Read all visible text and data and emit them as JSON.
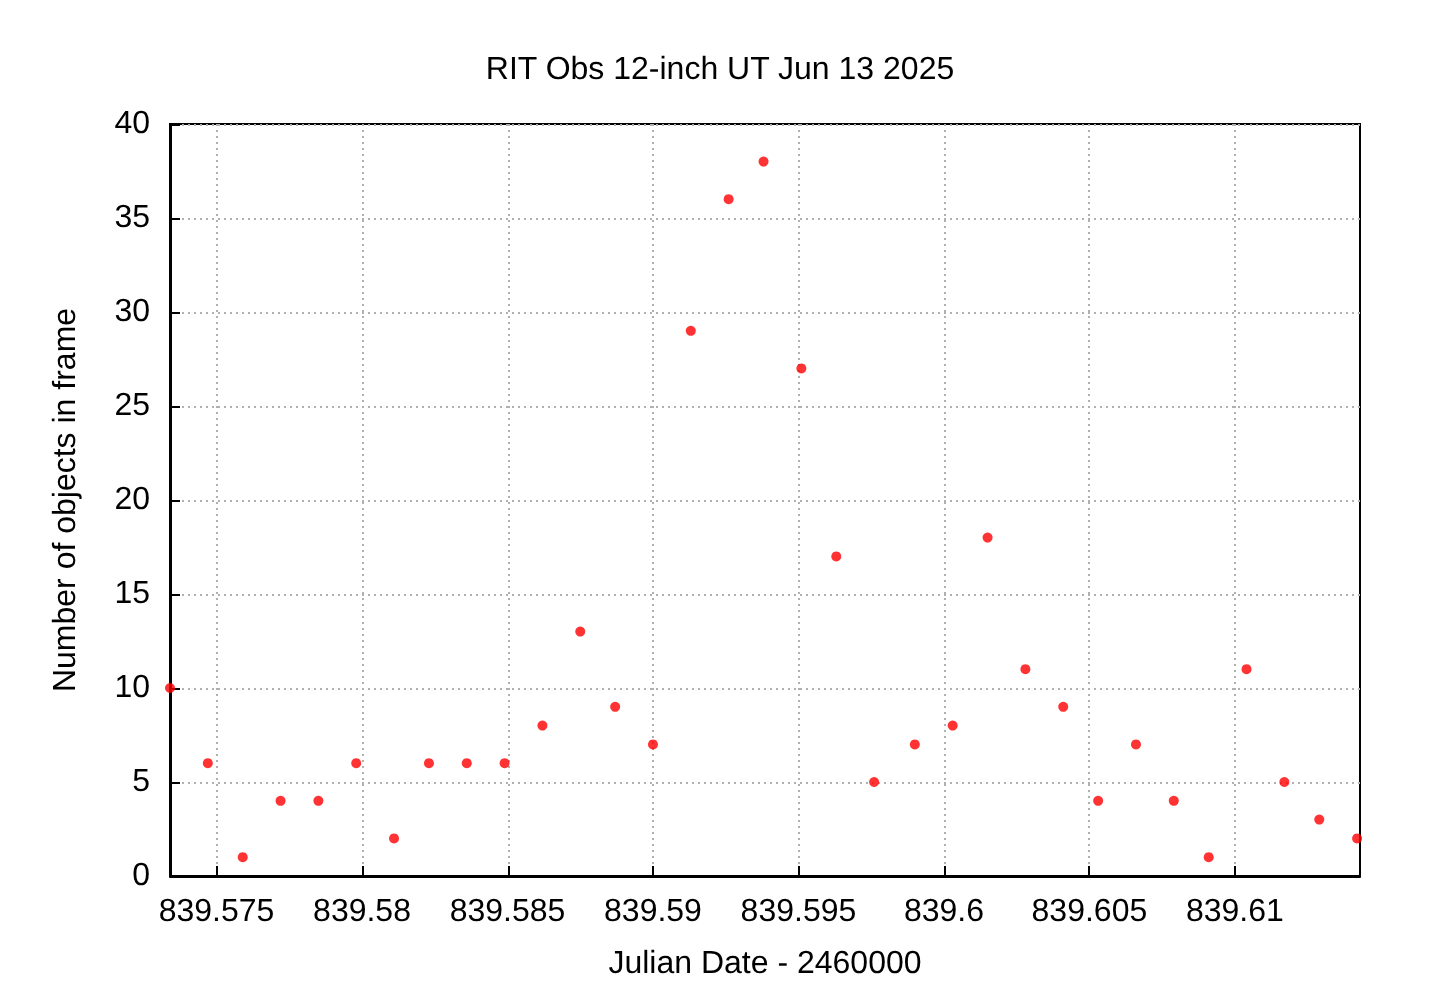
{
  "chart_data": {
    "type": "scatter",
    "title": "RIT Obs 12-inch UT Jun 13 2025",
    "xlabel": "Julian Date - 2460000",
    "ylabel": "Number of objects in frame",
    "x": [
      839.5734,
      839.5747,
      839.5759,
      839.5772,
      839.5785,
      839.5798,
      839.5811,
      839.5823,
      839.5836,
      839.5849,
      839.5862,
      839.5875,
      839.5887,
      839.59,
      839.5913,
      839.5926,
      839.5938,
      839.5951,
      839.5963,
      839.5976,
      839.599,
      839.6003,
      839.6015,
      839.6028,
      839.6041,
      839.6053,
      839.6066,
      839.6079,
      839.6091,
      839.6104,
      839.6117,
      839.6129,
      839.6142
    ],
    "values": [
      10,
      6,
      1,
      4,
      4,
      6,
      2,
      6,
      6,
      6,
      8,
      13,
      9,
      7,
      29,
      36,
      38,
      27,
      17,
      5,
      7,
      8,
      18,
      11,
      9,
      4,
      7,
      4,
      1,
      11,
      5,
      3,
      2
    ],
    "color": "#ff0000",
    "marker": "circle",
    "xlim": [
      839.5734,
      839.6143
    ],
    "xticks": [
      839.575,
      839.58,
      839.585,
      839.59,
      839.595,
      839.6,
      839.605,
      839.61
    ],
    "ylim": [
      0,
      40
    ],
    "yticks": [
      0,
      5,
      10,
      15,
      20,
      25,
      30,
      35,
      40
    ],
    "grid": true
  }
}
